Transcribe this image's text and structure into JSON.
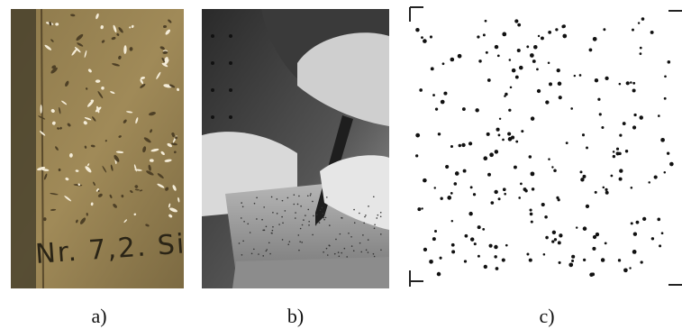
{
  "panels": [
    {
      "caption": "a)",
      "inscription": "Nr. 7,2. Si"
    },
    {
      "caption": "b)"
    },
    {
      "caption": "c)"
    }
  ]
}
